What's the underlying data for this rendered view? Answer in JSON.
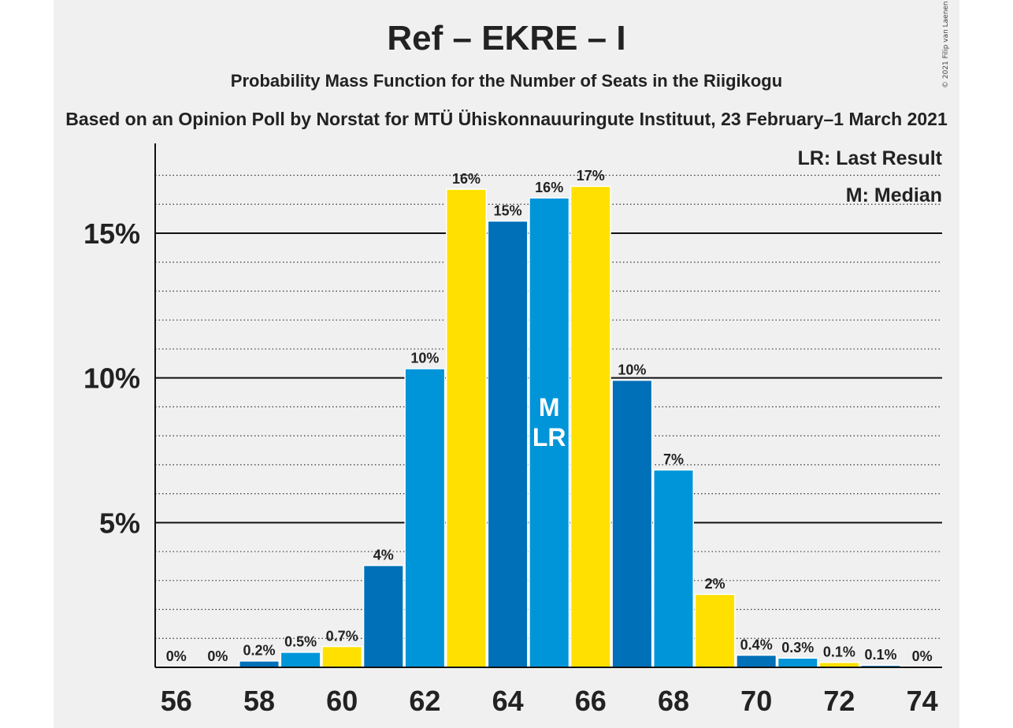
{
  "title": "Ref – EKRE – I",
  "subtitle": "Probability Mass Function for the Number of Seats in the Riigikogu",
  "subtitle2": "Based on an Opinion Poll by Norstat for MTÜ Ühiskonnauuringute Instituut, 23 February–1 March 2021",
  "copyright": "© 2021 Filip van Laenen",
  "legend": {
    "last_result": "LR: Last Result",
    "median": "M: Median"
  },
  "colors": {
    "dark_blue": "#0070b8",
    "light_blue": "#0095d9",
    "yellow": "#ffe000",
    "panel": "#f0f0f0"
  },
  "chart_data": {
    "type": "bar",
    "x": [
      56,
      57,
      58,
      59,
      60,
      61,
      62,
      63,
      64,
      65,
      66,
      67,
      68,
      69,
      70,
      71,
      72,
      73,
      74
    ],
    "values": [
      0.0,
      0.0,
      0.2,
      0.5,
      0.7,
      3.5,
      10.3,
      16.5,
      15.4,
      16.2,
      16.6,
      9.9,
      6.8,
      2.5,
      0.4,
      0.3,
      0.15,
      0.05,
      0.0
    ],
    "labels": [
      "0%",
      "0%",
      "0.2%",
      "0.5%",
      "0.7%",
      "4%",
      "10%",
      "16%",
      "15%",
      "16%",
      "17%",
      "10%",
      "7%",
      "2%",
      "0.4%",
      "0.3%",
      "0.1%",
      "0.1%",
      "0%"
    ],
    "colors": [
      "dark_blue",
      "light_blue",
      "dark_blue",
      "light_blue",
      "yellow",
      "dark_blue",
      "light_blue",
      "yellow",
      "dark_blue",
      "light_blue",
      "yellow",
      "dark_blue",
      "light_blue",
      "yellow",
      "dark_blue",
      "light_blue",
      "yellow",
      "dark_blue",
      "light_blue"
    ],
    "xticks": [
      "56",
      "58",
      "60",
      "62",
      "64",
      "66",
      "68",
      "70",
      "72",
      "74"
    ],
    "yticks": [
      "5%",
      "10%",
      "15%"
    ],
    "ylim": [
      0,
      18
    ],
    "median_seat": 65,
    "median_marker": "M",
    "last_result_seat": 65,
    "last_result_marker": "LR",
    "grid": true,
    "legend_position": "top-right"
  }
}
